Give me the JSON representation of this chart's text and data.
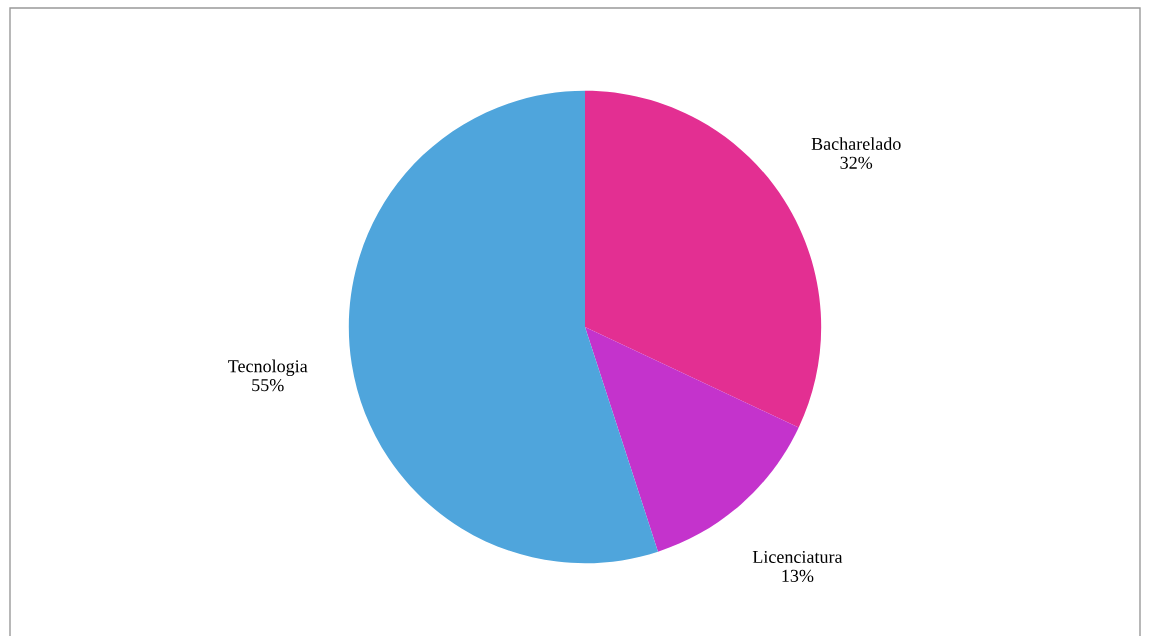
{
  "chart_data": {
    "type": "pie",
    "categories": [
      "Bacharelado",
      "Licenciatura",
      "Tecnologia"
    ],
    "values": [
      32,
      13,
      55
    ],
    "value_labels": [
      "32%",
      "13%",
      "55%"
    ],
    "colors": [
      "#e32f92",
      "#c433cc",
      "#4fa5dc"
    ],
    "legend": false
  }
}
